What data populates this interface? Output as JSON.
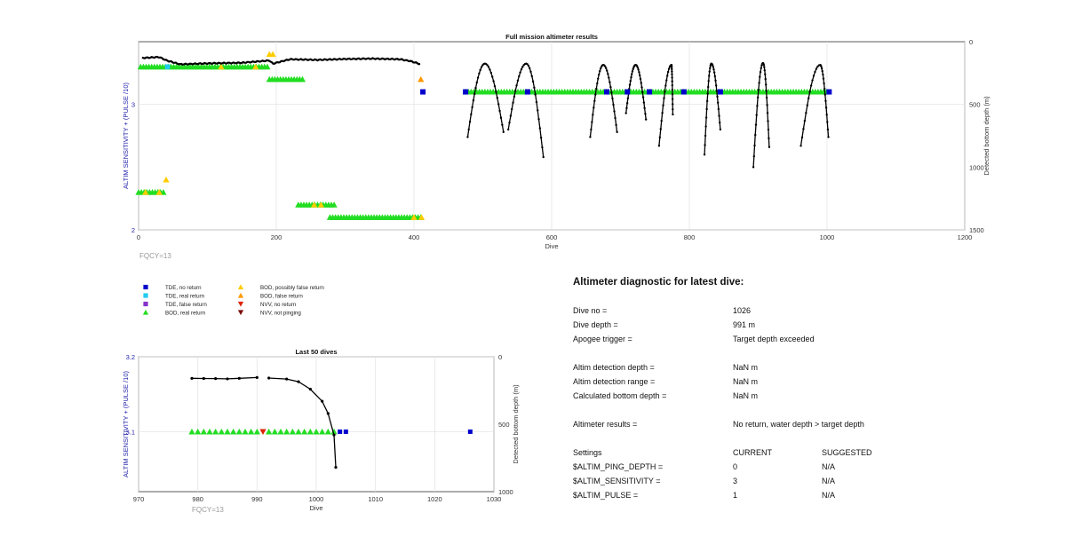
{
  "chart_data": [
    {
      "type": "scatter",
      "title": "Full mission altimeter results",
      "xlabel": "Dive",
      "ylabel": "ALTIM SENSITIVITY + (PULSE /10)",
      "y2label": "Detected bottom depth (m)",
      "xlim": [
        0,
        1200
      ],
      "ylim": [
        2,
        3.5
      ],
      "y2lim": [
        1500,
        0
      ],
      "xticks": [
        "0",
        "200",
        "400",
        "600",
        "800",
        "1000",
        "1200"
      ],
      "yticks": [
        "2",
        "3"
      ],
      "y2ticks": [
        "0",
        "500",
        "1000",
        "1500"
      ],
      "grid": true,
      "annotation": "FQCY=13",
      "colors": {
        "depth": "#000000",
        "tde_no": "#0000cc",
        "tde_real": "#22ccee",
        "tde_false": "#8833cc",
        "bod_real": "#22dd22",
        "bod_possibly": "#ffcc00",
        "bod_false": "#ff9900",
        "nvv_no": "#dd2200",
        "nvv_not": "#7a0a0a"
      },
      "depth_flat": [
        [
          5,
          130
        ],
        [
          30,
          122
        ],
        [
          40,
          148
        ],
        [
          60,
          180
        ],
        [
          100,
          173
        ],
        [
          150,
          168
        ],
        [
          190,
          150
        ],
        [
          195,
          175
        ],
        [
          220,
          140
        ],
        [
          260,
          145
        ],
        [
          300,
          138
        ],
        [
          340,
          135
        ],
        [
          380,
          140
        ],
        [
          395,
          155
        ],
        [
          410,
          180
        ]
      ],
      "depth_arches": [
        {
          "x0": 478,
          "peak_x": 503,
          "x1": 530,
          "peak": 175,
          "end0": 760,
          "end1": 720
        },
        {
          "x0": 537,
          "peak_x": 563,
          "x1": 588,
          "peak": 175,
          "end0": 700,
          "end1": 920
        },
        {
          "x0": 656,
          "peak_x": 675,
          "x1": 695,
          "peak": 185,
          "end0": 760,
          "end1": 720
        },
        {
          "x0": 708,
          "peak_x": 722,
          "x1": 737,
          "peak": 185,
          "end0": 570,
          "end1": 620
        },
        {
          "x0": 756,
          "peak_x": 774,
          "x1": 776,
          "peak": 185,
          "end0": 830,
          "end1": 580
        },
        {
          "x0": 822,
          "peak_x": 832,
          "x1": 845,
          "peak": 175,
          "end0": 900,
          "end1": 700
        },
        {
          "x0": 893,
          "peak_x": 907,
          "x1": 916,
          "peak": 170,
          "end0": 1000,
          "end1": 840
        },
        {
          "x0": 962,
          "peak_x": 990,
          "x1": 1002,
          "peak": 185,
          "end0": 830,
          "end1": 760
        }
      ],
      "segments": [
        {
          "x0": 3,
          "x1": 190,
          "y": 3.3,
          "color": "bod_real"
        },
        {
          "x0": 190,
          "x1": 238,
          "y": 3.2,
          "color": "bod_real"
        },
        {
          "x0": 475,
          "x1": 1000,
          "y": 3.1,
          "color": "bod_real"
        },
        {
          "x0": 0,
          "x1": 38,
          "y": 2.3,
          "color": "bod_real"
        },
        {
          "x0": 232,
          "x1": 285,
          "y": 2.2,
          "color": "bod_real"
        },
        {
          "x0": 278,
          "x1": 412,
          "y": 2.1,
          "color": "bod_real"
        }
      ],
      "markers": [
        {
          "x": 190,
          "y": 3.4,
          "s": "bod_possibly"
        },
        {
          "x": 410,
          "y": 3.2,
          "s": "bod_false"
        },
        {
          "x": 413,
          "y": 3.1,
          "s": "tde_no"
        },
        {
          "x": 40,
          "y": 2.4,
          "s": "bod_possibly"
        },
        {
          "x": 411,
          "y": 2.1,
          "s": "bod_possibly"
        },
        {
          "x": 475,
          "y": 3.1,
          "s": "tde_no"
        },
        {
          "x": 565,
          "y": 3.1,
          "s": "tde_no"
        },
        {
          "x": 680,
          "y": 3.1,
          "s": "tde_no"
        },
        {
          "x": 710,
          "y": 3.1,
          "s": "tde_no"
        },
        {
          "x": 742,
          "y": 3.1,
          "s": "tde_no"
        },
        {
          "x": 792,
          "y": 3.1,
          "s": "tde_no"
        },
        {
          "x": 845,
          "y": 3.1,
          "s": "tde_no"
        },
        {
          "x": 1003,
          "y": 3.1,
          "s": "tde_no"
        }
      ]
    },
    {
      "type": "scatter",
      "title": "Last 50 dives",
      "xlabel": "Dive",
      "ylabel": "ALTIM SENSITIVITY + (PULSE /10)",
      "y2label": "Detected bottom depth (m)",
      "xlim": [
        970,
        1030
      ],
      "ylim": [
        3.02,
        3.2
      ],
      "y2lim": [
        1000,
        0
      ],
      "xticks": [
        "970",
        "980",
        "990",
        "1000",
        "1010",
        "1020",
        "1030"
      ],
      "yticks": [
        "3.1",
        "3.2"
      ],
      "y2ticks": [
        "0",
        "500",
        "1000"
      ],
      "grid": true,
      "annotation": "FQCY=13",
      "depth": [
        [
          979,
          160
        ],
        [
          981,
          161
        ],
        [
          983,
          162
        ],
        [
          985,
          164
        ],
        [
          987,
          160
        ],
        [
          990,
          154
        ],
        [
          992,
          158
        ],
        [
          995,
          165
        ],
        [
          997,
          185
        ],
        [
          999,
          240
        ],
        [
          1001,
          330
        ],
        [
          1002,
          420
        ],
        [
          1003,
          580
        ],
        [
          1003.3,
          820
        ]
      ],
      "markers_bod_real": [
        979,
        980,
        981,
        982,
        983,
        984,
        985,
        986,
        987,
        988,
        989,
        990,
        992,
        993,
        994,
        995,
        996,
        997,
        998,
        999,
        1000,
        1001,
        1002,
        1003
      ],
      "markers_nvv_no": [
        991
      ],
      "markers_tde_no": [
        1004,
        1005,
        1026
      ]
    }
  ],
  "legend": [
    {
      "label": "TDE, no return",
      "symbol": "square",
      "color": "#0000cc"
    },
    {
      "label": "TDE, real return",
      "symbol": "square",
      "color": "#22ccee"
    },
    {
      "label": "TDE, false return",
      "symbol": "square",
      "color": "#8833cc"
    },
    {
      "label": "BOD, real return",
      "symbol": "triangle-up",
      "color": "#22dd22"
    },
    {
      "label": "BOD, possibly false return",
      "symbol": "triangle-up",
      "color": "#ffcc00"
    },
    {
      "label": "BOD, false return",
      "symbol": "triangle-up",
      "color": "#ff9900"
    },
    {
      "label": "NVV, no return",
      "symbol": "triangle-down",
      "color": "#dd2200"
    },
    {
      "label": "NVV, not pinging",
      "symbol": "triangle-down",
      "color": "#7a0a0a"
    }
  ],
  "diagnostic": {
    "title": "Altimeter diagnostic for latest dive:",
    "rows": [
      {
        "label": "Dive no =",
        "value": "1026"
      },
      {
        "label": "Dive depth =",
        "value": "991 m"
      },
      {
        "label": "Apogee trigger =",
        "value": "Target depth exceeded"
      },
      {
        "label": "Altim detection depth =",
        "value": "NaN m"
      },
      {
        "label": "Altim detection range =",
        "value": "NaN m"
      },
      {
        "label": "Calculated bottom depth =",
        "value": "NaN m"
      },
      {
        "label": "Altimeter results =",
        "value": "No return, water depth > target depth"
      }
    ],
    "settings_header": {
      "label": "Settings",
      "current": "CURRENT",
      "suggested": "SUGGESTED"
    },
    "settings": [
      {
        "name": "$ALTIM_PING_DEPTH =",
        "current": "0",
        "suggested": "N/A"
      },
      {
        "name": "$ALTIM_SENSITIVITY =",
        "current": "3",
        "suggested": "N/A"
      },
      {
        "name": "$ALTIM_PULSE =",
        "current": "1",
        "suggested": "N/A"
      }
    ]
  }
}
